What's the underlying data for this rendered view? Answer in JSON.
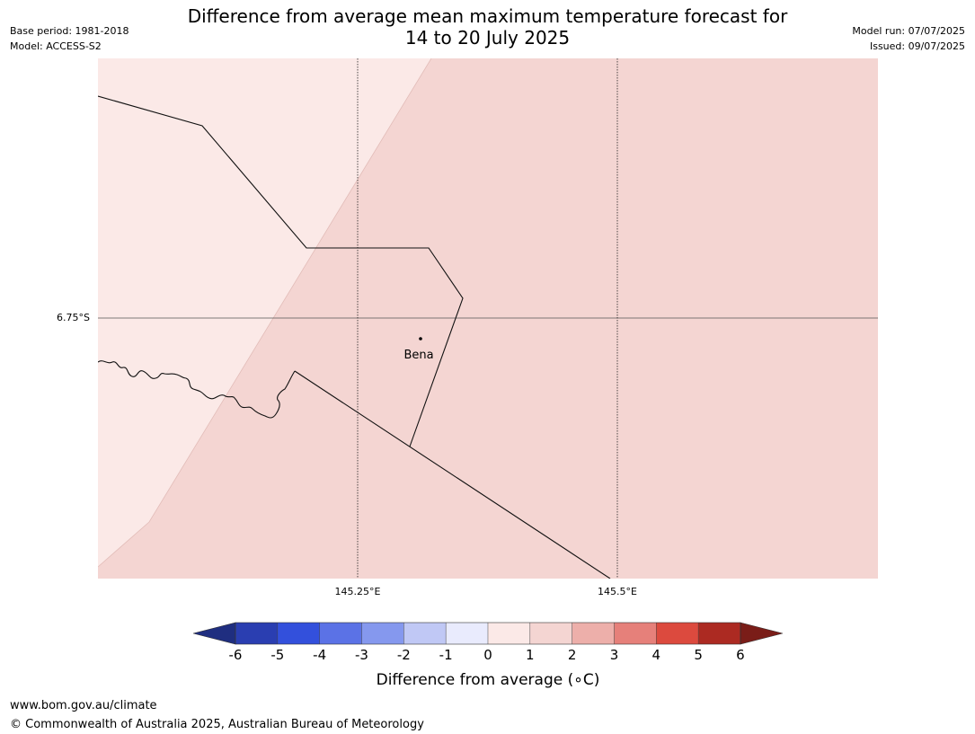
{
  "header": {
    "base_period": "Base period: 1981-2018",
    "model": "Model: ACCESS-S2",
    "model_run": "Model run: 07/07/2025",
    "issued": "Issued: 09/07/2025",
    "title_line1": "Difference from average mean maximum temperature forecast for",
    "title_line2": "14 to 20 July 2025"
  },
  "map": {
    "lat_label": "6.75°S",
    "lon_labels": [
      "145.25°E",
      "145.5°E"
    ],
    "place": "Bena",
    "colors": {
      "bin_0_to_1": "#fbe9e7",
      "bin_1_to_2": "#f4d5d2",
      "boundary": "#111111",
      "gridline": "#555555"
    }
  },
  "colorbar": {
    "label": "Difference from average (∘C)",
    "ticks": [
      "-6",
      "-5",
      "-4",
      "-3",
      "-2",
      "-1",
      "0",
      "1",
      "2",
      "3",
      "4",
      "5",
      "6"
    ],
    "colors": [
      "#1f2e80",
      "#2a3eb1",
      "#3350dc",
      "#5b72e6",
      "#8598ee",
      "#c0c8f5",
      "#e9ebfd",
      "#fbe9e7",
      "#f4d5d2",
      "#edafaa",
      "#e6807a",
      "#dc4a3e",
      "#ac2a22",
      "#7a1d18"
    ]
  },
  "footer": {
    "url": "www.bom.gov.au/climate",
    "copyright": "© Commonwealth of Australia 2025, Australian Bureau of Meteorology"
  }
}
